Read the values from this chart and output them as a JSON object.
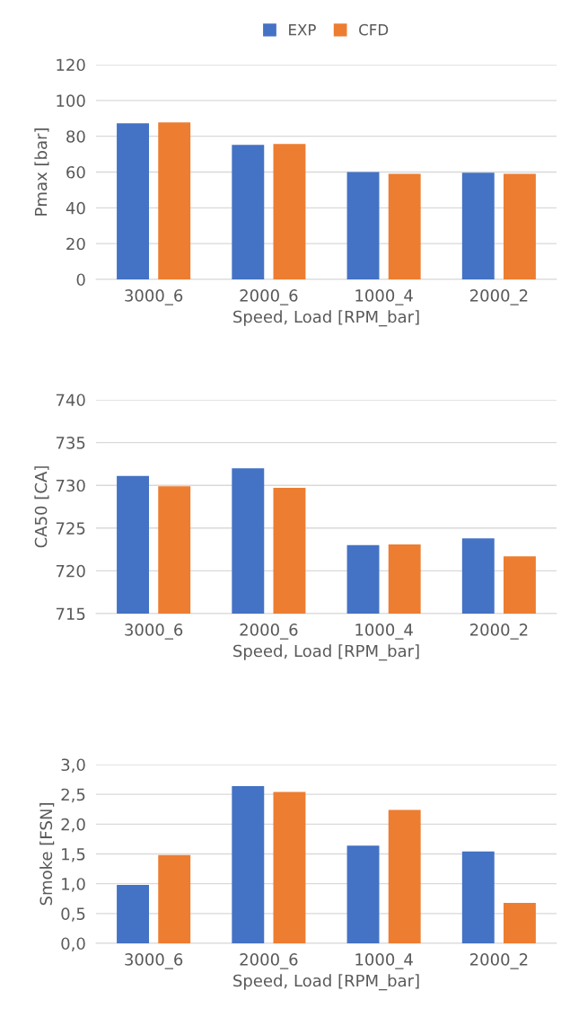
{
  "chart_data": [
    {
      "type": "bar",
      "categories": [
        "3000_6",
        "2000_6",
        "1000_4",
        "2000_2"
      ],
      "xlabel": "Speed, Load [RPM_bar]",
      "ylabel": "Pmax [bar]",
      "ylim": [
        0,
        120
      ],
      "yticks": [
        0,
        20,
        40,
        60,
        80,
        100,
        120
      ],
      "grid": "y",
      "legend": "top",
      "series": [
        {
          "name": "EXP",
          "color": "#4472c4",
          "values": [
            87.3,
            75.2,
            60.0,
            59.6
          ]
        },
        {
          "name": "CFD",
          "color": "#ed7d31",
          "values": [
            87.8,
            75.7,
            59.0,
            59.0
          ]
        }
      ]
    },
    {
      "type": "bar",
      "categories": [
        "3000_6",
        "2000_6",
        "1000_4",
        "2000_2"
      ],
      "xlabel": "Speed, Load [RPM_bar]",
      "ylabel": "CA50 [CA]",
      "ylim": [
        715,
        740
      ],
      "yticks": [
        715,
        720,
        725,
        730,
        735,
        740
      ],
      "grid": "y",
      "series": [
        {
          "color": "#4472c4",
          "values": [
            731.1,
            732.0,
            723.0,
            723.8
          ]
        },
        {
          "color": "#ed7d31",
          "values": [
            729.9,
            729.7,
            723.1,
            721.7
          ]
        }
      ]
    },
    {
      "type": "bar",
      "categories": [
        "3000_6",
        "2000_6",
        "1000_4",
        "2000_2"
      ],
      "xlabel": "Speed, Load [RPM_bar]",
      "ylabel": "Smoke [FSN]",
      "ylim": [
        0,
        3
      ],
      "yticks": [
        {
          "value": 0,
          "label": "0,0"
        },
        {
          "value": 0.5,
          "label": "0,5"
        },
        {
          "value": 1,
          "label": "1,0"
        },
        {
          "value": 1.5,
          "label": "1,5"
        },
        {
          "value": 2,
          "label": "2,0"
        },
        {
          "value": 2.5,
          "label": "2,5"
        },
        {
          "value": 3,
          "label": "3,0"
        }
      ],
      "grid": "y",
      "series": [
        {
          "color": "#4472c4",
          "values": [
            0.98,
            2.64,
            1.64,
            1.54
          ]
        },
        {
          "color": "#ed7d31",
          "values": [
            1.48,
            2.54,
            2.24,
            0.68
          ]
        }
      ]
    }
  ]
}
